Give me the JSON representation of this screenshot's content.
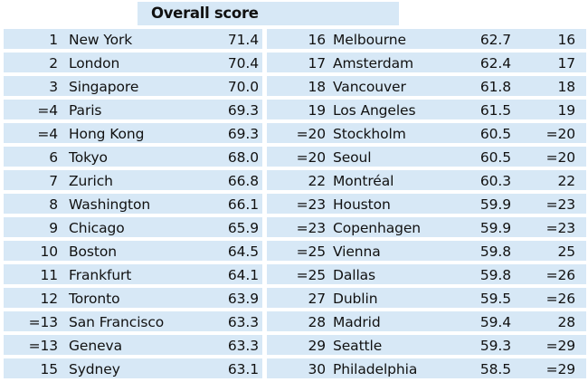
{
  "title": "Overall score",
  "left_rows": [
    {
      "rank": "1",
      "city": "New York",
      "score": "71.4"
    },
    {
      "rank": "2",
      "city": "London",
      "score": "70.4"
    },
    {
      "rank": "3",
      "city": "Singapore",
      "score": "70.0"
    },
    {
      "rank": "=4",
      "city": "Paris",
      "score": "69.3"
    },
    {
      "rank": "=4",
      "city": "Hong Kong",
      "score": "69.3"
    },
    {
      "rank": "6",
      "city": "Tokyo",
      "score": "68.0"
    },
    {
      "rank": "7",
      "city": "Zurich",
      "score": "66.8"
    },
    {
      "rank": "8",
      "city": "Washington",
      "score": "66.1"
    },
    {
      "rank": "9",
      "city": "Chicago",
      "score": "65.9"
    },
    {
      "rank": "10",
      "city": "Boston",
      "score": "64.5"
    },
    {
      "rank": "11",
      "city": "Frankfurt",
      "score": "64.1"
    },
    {
      "rank": "12",
      "city": "Toronto",
      "score": "63.9"
    },
    {
      "rank": "=13",
      "city": "San Francisco",
      "score": "63.3"
    },
    {
      "rank": "=13",
      "city": "Geneva",
      "score": "63.3"
    },
    {
      "rank": "15",
      "city": "Sydney",
      "score": "63.1"
    }
  ],
  "right_rows": [
    {
      "rank": "16",
      "city": "Melbourne",
      "score": "62.7",
      "prev": "16"
    },
    {
      "rank": "17",
      "city": "Amsterdam",
      "score": "62.4",
      "prev": "17"
    },
    {
      "rank": "18",
      "city": "Vancouver",
      "score": "61.8",
      "prev": "18"
    },
    {
      "rank": "19",
      "city": "Los Angeles",
      "score": "61.5",
      "prev": "19"
    },
    {
      "rank": "=20",
      "city": "Stockholm",
      "score": "60.5",
      "prev": "=20"
    },
    {
      "rank": "=20",
      "city": "Seoul",
      "score": "60.5",
      "prev": "=20"
    },
    {
      "rank": "22",
      "city": "Montréal",
      "score": "60.3",
      "prev": "22"
    },
    {
      "rank": "=23",
      "city": "Houston",
      "score": "59.9",
      "prev": "=23"
    },
    {
      "rank": "=23",
      "city": "Copenhagen",
      "score": "59.9",
      "prev": "=23"
    },
    {
      "rank": "=25",
      "city": "Vienna",
      "score": "59.8",
      "prev": "25"
    },
    {
      "rank": "=25",
      "city": "Dallas",
      "score": "59.8",
      "prev": "=26"
    },
    {
      "rank": "27",
      "city": "Dublin",
      "score": "59.5",
      "prev": "=26"
    },
    {
      "rank": "28",
      "city": "Madrid",
      "score": "59.4",
      "prev": "28"
    },
    {
      "rank": "29",
      "city": "Seattle",
      "score": "59.3",
      "prev": "=29"
    },
    {
      "rank": "30",
      "city": "Philadelphia",
      "score": "58.5",
      "prev": "=29"
    }
  ],
  "colors": {
    "band": "#d7e8f6",
    "text": "#111111"
  }
}
